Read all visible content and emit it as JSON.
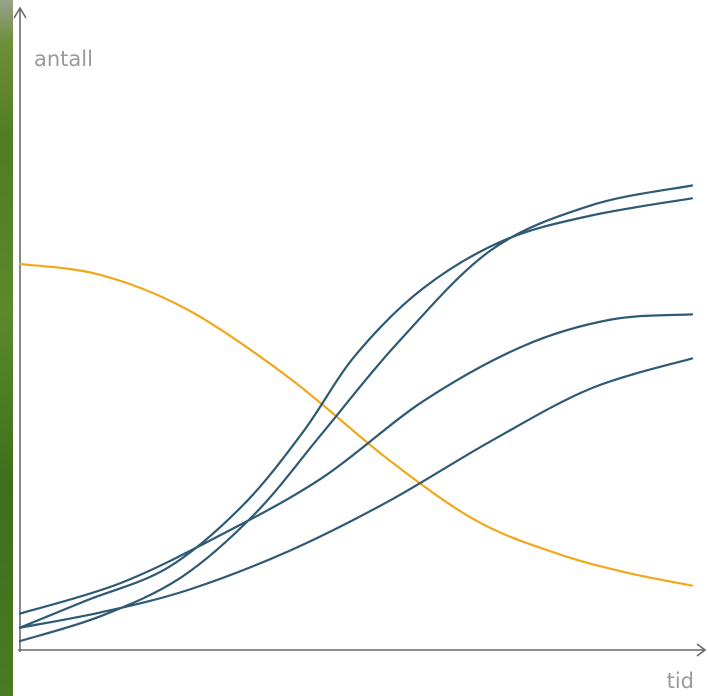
{
  "chart_data": {
    "type": "line",
    "xlabel": "tid",
    "ylabel": "antall",
    "xlim": [
      0,
      1
    ],
    "ylim": [
      0,
      1
    ],
    "grid": false,
    "legend": "none",
    "colors": {
      "orange": "#f0a81d",
      "blue": "#2e5a74",
      "axis": "#6a6a6a"
    },
    "series": [
      {
        "color": "#f0a81d",
        "points": [
          [
            0.0,
            0.605
          ],
          [
            0.12,
            0.588
          ],
          [
            0.25,
            0.533
          ],
          [
            0.4,
            0.427
          ],
          [
            0.55,
            0.297
          ],
          [
            0.68,
            0.202
          ],
          [
            0.8,
            0.151
          ],
          [
            0.9,
            0.122
          ],
          [
            1.0,
            0.101
          ]
        ]
      },
      {
        "color": "#2e5a74",
        "points": [
          [
            0.0,
            0.035
          ],
          [
            0.1,
            0.078
          ],
          [
            0.22,
            0.129
          ],
          [
            0.33,
            0.225
          ],
          [
            0.42,
            0.34
          ],
          [
            0.5,
            0.463
          ],
          [
            0.6,
            0.567
          ],
          [
            0.72,
            0.642
          ],
          [
            0.85,
            0.681
          ],
          [
            1.0,
            0.708
          ]
        ]
      },
      {
        "color": "#2e5a74",
        "points": [
          [
            0.0,
            0.014
          ],
          [
            0.12,
            0.053
          ],
          [
            0.24,
            0.114
          ],
          [
            0.35,
            0.214
          ],
          [
            0.45,
            0.34
          ],
          [
            0.56,
            0.479
          ],
          [
            0.7,
            0.626
          ],
          [
            0.85,
            0.697
          ],
          [
            1.0,
            0.728
          ]
        ]
      },
      {
        "color": "#2e5a74",
        "points": [
          [
            0.0,
            0.057
          ],
          [
            0.15,
            0.105
          ],
          [
            0.3,
            0.181
          ],
          [
            0.45,
            0.27
          ],
          [
            0.6,
            0.39
          ],
          [
            0.75,
            0.477
          ],
          [
            0.88,
            0.518
          ],
          [
            1.0,
            0.526
          ]
        ]
      },
      {
        "color": "#2e5a74",
        "points": [
          [
            0.0,
            0.035
          ],
          [
            0.12,
            0.059
          ],
          [
            0.25,
            0.094
          ],
          [
            0.4,
            0.155
          ],
          [
            0.55,
            0.234
          ],
          [
            0.7,
            0.327
          ],
          [
            0.85,
            0.41
          ],
          [
            1.0,
            0.457
          ]
        ]
      }
    ]
  }
}
